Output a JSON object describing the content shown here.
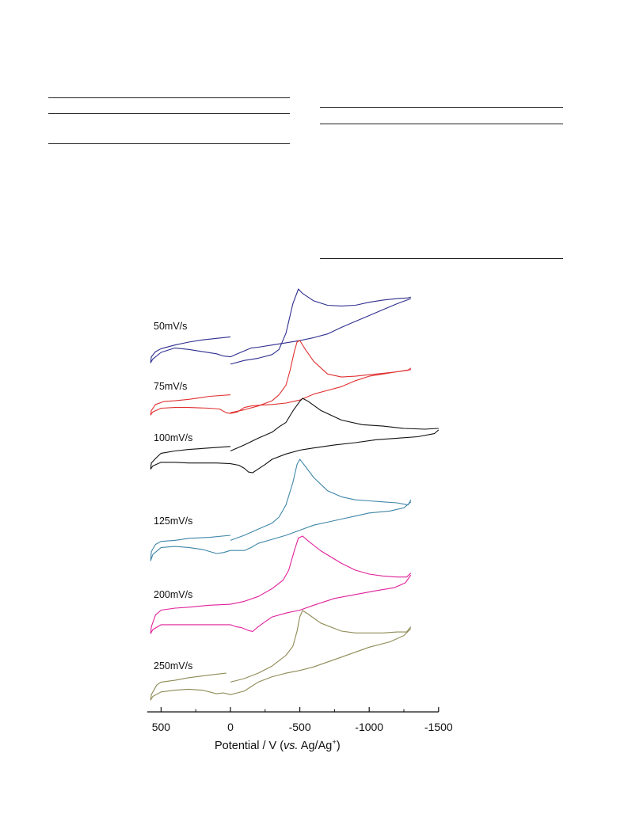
{
  "table_rules": {
    "left_table": [
      "rule-top",
      "rule-header",
      "rule-bottom"
    ],
    "right_table": [
      "rule-top",
      "rule-header",
      "rule-bottom"
    ]
  },
  "chart_data": {
    "type": "line",
    "title": "",
    "xlabel": {
      "prefix": "Potential / V (",
      "italic": "vs.",
      "mid": " Ag/Ag",
      "sup": "+",
      "suffix": ")"
    },
    "ylabel": "",
    "xlim": [
      600,
      -1500
    ],
    "x_reversed": true,
    "x_ticks": [
      500,
      0,
      -500,
      -1000,
      -1500
    ],
    "x_tick_labels": [
      "500",
      "0",
      "-500",
      "-1000",
      "-1500"
    ],
    "y_axis_shown": false,
    "grid": false,
    "legend": "none",
    "series": [
      {
        "name": "50mV/s",
        "color": "#2e2e8f",
        "ymin": 365,
        "ymax": 458,
        "x_max_neg": -1300,
        "forward": [
          [
            0,
            -0.02
          ],
          [
            -100,
            0.03
          ],
          [
            -200,
            0.06
          ],
          [
            -300,
            0.11
          ],
          [
            -350,
            0.18
          ],
          [
            -400,
            0.4
          ],
          [
            -450,
            0.8
          ],
          [
            -490,
            1.0
          ],
          [
            -520,
            0.94
          ],
          [
            -600,
            0.84
          ],
          [
            -700,
            0.78
          ],
          [
            -800,
            0.77
          ],
          [
            -900,
            0.78
          ],
          [
            -1000,
            0.82
          ],
          [
            -1100,
            0.85
          ],
          [
            -1200,
            0.87
          ],
          [
            -1280,
            0.88
          ],
          [
            -1300,
            0.89
          ]
        ],
        "reverse": [
          [
            -1300,
            0.87
          ],
          [
            -1200,
            0.8
          ],
          [
            -1100,
            0.72
          ],
          [
            -1000,
            0.64
          ],
          [
            -900,
            0.56
          ],
          [
            -800,
            0.48
          ],
          [
            -700,
            0.39
          ],
          [
            -600,
            0.34
          ],
          [
            -500,
            0.3
          ],
          [
            -400,
            0.27
          ],
          [
            -300,
            0.24
          ],
          [
            -200,
            0.21
          ],
          [
            -150,
            0.2
          ],
          [
            -100,
            0.16
          ],
          [
            -50,
            0.12
          ],
          [
            0,
            0.08
          ],
          [
            50,
            0.09
          ],
          [
            100,
            0.12
          ],
          [
            200,
            0.15
          ],
          [
            300,
            0.18
          ],
          [
            400,
            0.2
          ],
          [
            500,
            0.14
          ],
          [
            560,
            0.05
          ],
          [
            575,
            0.0
          ],
          [
            570,
            0.08
          ],
          [
            540,
            0.15
          ],
          [
            500,
            0.19
          ],
          [
            400,
            0.24
          ],
          [
            300,
            0.28
          ],
          [
            200,
            0.31
          ],
          [
            100,
            0.33
          ],
          [
            0,
            0.35
          ]
        ]
      },
      {
        "name": "75mV/s",
        "color": "#e03030",
        "ymin": 430,
        "ymax": 524,
        "x_max_neg": -1300,
        "forward": [
          [
            0,
            0.03
          ],
          [
            -100,
            0.07
          ],
          [
            -200,
            0.12
          ],
          [
            -300,
            0.19
          ],
          [
            -350,
            0.27
          ],
          [
            -400,
            0.4
          ],
          [
            -430,
            0.6
          ],
          [
            -460,
            0.85
          ],
          [
            -480,
            0.98
          ],
          [
            -500,
            1.0
          ],
          [
            -540,
            0.88
          ],
          [
            -600,
            0.72
          ],
          [
            -700,
            0.55
          ],
          [
            -800,
            0.51
          ],
          [
            -900,
            0.52
          ],
          [
            -1000,
            0.54
          ],
          [
            -1100,
            0.56
          ],
          [
            -1200,
            0.58
          ],
          [
            -1280,
            0.6
          ],
          [
            -1300,
            0.63
          ]
        ],
        "reverse": [
          [
            -1300,
            0.61
          ],
          [
            -1200,
            0.58
          ],
          [
            -1100,
            0.55
          ],
          [
            -1000,
            0.52
          ],
          [
            -900,
            0.46
          ],
          [
            -800,
            0.38
          ],
          [
            -700,
            0.33
          ],
          [
            -600,
            0.28
          ],
          [
            -500,
            0.2
          ],
          [
            -400,
            0.16
          ],
          [
            -300,
            0.14
          ],
          [
            -200,
            0.13
          ],
          [
            -150,
            0.12
          ],
          [
            -100,
            0.1
          ],
          [
            -50,
            0.04
          ],
          [
            0,
            0.02
          ],
          [
            30,
            0.03
          ],
          [
            80,
            0.08
          ],
          [
            150,
            0.09
          ],
          [
            300,
            0.1
          ],
          [
            400,
            0.1
          ],
          [
            500,
            0.09
          ],
          [
            560,
            0.04
          ],
          [
            575,
            0.0
          ],
          [
            570,
            0.06
          ],
          [
            540,
            0.14
          ],
          [
            480,
            0.18
          ],
          [
            400,
            0.19
          ],
          [
            300,
            0.21
          ],
          [
            150,
            0.25
          ],
          [
            0,
            0.27
          ]
        ]
      },
      {
        "name": "100mV/s",
        "color": "#111111",
        "ymin": 503,
        "ymax": 598,
        "x_max_neg": -1500,
        "forward": [
          [
            0,
            0.3
          ],
          [
            -100,
            0.38
          ],
          [
            -200,
            0.47
          ],
          [
            -300,
            0.55
          ],
          [
            -350,
            0.62
          ],
          [
            -400,
            0.68
          ],
          [
            -450,
            0.83
          ],
          [
            -500,
            0.96
          ],
          [
            -520,
            1.0
          ],
          [
            -560,
            0.96
          ],
          [
            -650,
            0.84
          ],
          [
            -800,
            0.71
          ],
          [
            -950,
            0.65
          ],
          [
            -1100,
            0.63
          ],
          [
            -1250,
            0.6
          ],
          [
            -1400,
            0.59
          ],
          [
            -1500,
            0.6
          ]
        ],
        "reverse": [
          [
            -1500,
            0.58
          ],
          [
            -1470,
            0.53
          ],
          [
            -1350,
            0.49
          ],
          [
            -1200,
            0.47
          ],
          [
            -1050,
            0.45
          ],
          [
            -900,
            0.41
          ],
          [
            -750,
            0.38
          ],
          [
            -600,
            0.34
          ],
          [
            -500,
            0.31
          ],
          [
            -400,
            0.26
          ],
          [
            -300,
            0.19
          ],
          [
            -250,
            0.12
          ],
          [
            -200,
            0.06
          ],
          [
            -160,
            0.01
          ],
          [
            -130,
            0.02
          ],
          [
            -100,
            0.07
          ],
          [
            -60,
            0.11
          ],
          [
            0,
            0.13
          ],
          [
            100,
            0.14
          ],
          [
            200,
            0.14
          ],
          [
            300,
            0.14
          ],
          [
            400,
            0.15
          ],
          [
            500,
            0.15
          ],
          [
            560,
            0.1
          ],
          [
            575,
            0.06
          ],
          [
            570,
            0.14
          ],
          [
            540,
            0.2
          ],
          [
            500,
            0.27
          ],
          [
            400,
            0.3
          ],
          [
            300,
            0.32
          ],
          [
            150,
            0.34
          ],
          [
            0,
            0.36
          ]
        ]
      },
      {
        "name": "125mV/s",
        "color": "#3f86a8",
        "ymin": 580,
        "ymax": 708,
        "x_max_neg": -1300,
        "forward": [
          [
            0,
            0.2
          ],
          [
            -100,
            0.25
          ],
          [
            -200,
            0.31
          ],
          [
            -300,
            0.37
          ],
          [
            -350,
            0.43
          ],
          [
            -400,
            0.55
          ],
          [
            -450,
            0.77
          ],
          [
            -480,
            0.95
          ],
          [
            -500,
            1.0
          ],
          [
            -540,
            0.93
          ],
          [
            -600,
            0.82
          ],
          [
            -700,
            0.69
          ],
          [
            -800,
            0.63
          ],
          [
            -900,
            0.6
          ],
          [
            -1000,
            0.59
          ],
          [
            -1100,
            0.58
          ],
          [
            -1200,
            0.57
          ],
          [
            -1280,
            0.55
          ],
          [
            -1300,
            0.6
          ]
        ],
        "reverse": [
          [
            -1300,
            0.58
          ],
          [
            -1250,
            0.52
          ],
          [
            -1150,
            0.49
          ],
          [
            -1000,
            0.47
          ],
          [
            -900,
            0.44
          ],
          [
            -800,
            0.41
          ],
          [
            -700,
            0.38
          ],
          [
            -600,
            0.35
          ],
          [
            -500,
            0.3
          ],
          [
            -400,
            0.25
          ],
          [
            -300,
            0.21
          ],
          [
            -200,
            0.17
          ],
          [
            -150,
            0.13
          ],
          [
            -100,
            0.1
          ],
          [
            0,
            0.1
          ],
          [
            50,
            0.08
          ],
          [
            100,
            0.07
          ],
          [
            150,
            0.09
          ],
          [
            200,
            0.11
          ],
          [
            300,
            0.13
          ],
          [
            400,
            0.14
          ],
          [
            500,
            0.13
          ],
          [
            560,
            0.06
          ],
          [
            575,
            0.0
          ],
          [
            570,
            0.09
          ],
          [
            540,
            0.16
          ],
          [
            500,
            0.19
          ],
          [
            400,
            0.2
          ],
          [
            300,
            0.22
          ],
          [
            150,
            0.23
          ],
          [
            0,
            0.25
          ]
        ]
      },
      {
        "name": "200mV/s",
        "color": "#e0209a",
        "ymin": 677,
        "ymax": 800,
        "x_max_neg": -1300,
        "forward": [
          [
            0,
            0.3
          ],
          [
            -100,
            0.33
          ],
          [
            -200,
            0.38
          ],
          [
            -300,
            0.46
          ],
          [
            -380,
            0.55
          ],
          [
            -420,
            0.65
          ],
          [
            -460,
            0.85
          ],
          [
            -490,
            0.98
          ],
          [
            -520,
            1.0
          ],
          [
            -560,
            0.95
          ],
          [
            -650,
            0.85
          ],
          [
            -800,
            0.72
          ],
          [
            -900,
            0.65
          ],
          [
            -1000,
            0.61
          ],
          [
            -1100,
            0.59
          ],
          [
            -1200,
            0.58
          ],
          [
            -1270,
            0.58
          ],
          [
            -1300,
            0.62
          ]
        ],
        "reverse": [
          [
            -1300,
            0.6
          ],
          [
            -1260,
            0.52
          ],
          [
            -1180,
            0.47
          ],
          [
            -1050,
            0.44
          ],
          [
            -900,
            0.4
          ],
          [
            -750,
            0.36
          ],
          [
            -600,
            0.29
          ],
          [
            -500,
            0.24
          ],
          [
            -400,
            0.21
          ],
          [
            -300,
            0.17
          ],
          [
            -250,
            0.12
          ],
          [
            -200,
            0.07
          ],
          [
            -160,
            0.02
          ],
          [
            -130,
            0.03
          ],
          [
            -80,
            0.06
          ],
          [
            -40,
            0.07
          ],
          [
            0,
            0.09
          ],
          [
            100,
            0.09
          ],
          [
            200,
            0.09
          ],
          [
            300,
            0.09
          ],
          [
            400,
            0.09
          ],
          [
            500,
            0.09
          ],
          [
            560,
            0.04
          ],
          [
            575,
            0.0
          ],
          [
            570,
            0.07
          ],
          [
            540,
            0.19
          ],
          [
            500,
            0.24
          ],
          [
            400,
            0.26
          ],
          [
            300,
            0.27
          ],
          [
            150,
            0.29
          ],
          [
            0,
            0.3
          ]
        ]
      },
      {
        "name": "250mV/s",
        "color": "#8f8a55",
        "ymin": 771,
        "ymax": 884,
        "x_max_neg": -1300,
        "forward": [
          [
            0,
            0.2
          ],
          [
            -100,
            0.24
          ],
          [
            -200,
            0.3
          ],
          [
            -300,
            0.38
          ],
          [
            -350,
            0.44
          ],
          [
            -400,
            0.5
          ],
          [
            -450,
            0.6
          ],
          [
            -480,
            0.77
          ],
          [
            -500,
            0.93
          ],
          [
            -520,
            1.0
          ],
          [
            -560,
            0.96
          ],
          [
            -650,
            0.86
          ],
          [
            -800,
            0.77
          ],
          [
            -900,
            0.75
          ],
          [
            -1000,
            0.75
          ],
          [
            -1100,
            0.75
          ],
          [
            -1200,
            0.76
          ],
          [
            -1270,
            0.76
          ],
          [
            -1300,
            0.82
          ]
        ],
        "reverse": [
          [
            -1300,
            0.8
          ],
          [
            -1250,
            0.72
          ],
          [
            -1150,
            0.65
          ],
          [
            -1000,
            0.59
          ],
          [
            -800,
            0.48
          ],
          [
            -600,
            0.37
          ],
          [
            -500,
            0.33
          ],
          [
            -400,
            0.3
          ],
          [
            -300,
            0.26
          ],
          [
            -200,
            0.2
          ],
          [
            -150,
            0.15
          ],
          [
            -100,
            0.1
          ],
          [
            -50,
            0.08
          ],
          [
            0,
            0.06
          ],
          [
            50,
            0.08
          ],
          [
            100,
            0.07
          ],
          [
            150,
            0.09
          ],
          [
            200,
            0.11
          ],
          [
            300,
            0.12
          ],
          [
            400,
            0.11
          ],
          [
            500,
            0.09
          ],
          [
            560,
            0.04
          ],
          [
            575,
            0.0
          ],
          [
            570,
            0.06
          ],
          [
            530,
            0.17
          ],
          [
            500,
            0.2
          ],
          [
            400,
            0.22
          ],
          [
            300,
            0.25
          ],
          [
            150,
            0.28
          ],
          [
            30,
            0.3
          ]
        ]
      }
    ]
  }
}
